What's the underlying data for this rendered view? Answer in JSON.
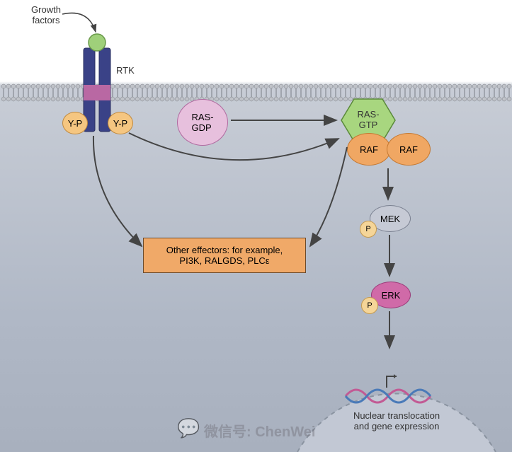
{
  "labels": {
    "growth_factors": "Growth\nfactors",
    "rtk": "RTK",
    "yp_left": "Y-P",
    "yp_right": "Y-P",
    "ras_gdp": "RAS-\nGDP",
    "ras_gtp": "RAS-\nGTP",
    "raf1": "RAF",
    "raf2": "RAF",
    "mek": "MEK",
    "p1": "P",
    "erk": "ERK",
    "p2": "P",
    "effectors": "Other effectors: for example,\nPI3K, RALGDS, PLCε",
    "nucleus": "Nuclear translocation\nand gene expression",
    "watermark_wechat": "微信号:",
    "watermark_name": "ChenWei"
  },
  "colors": {
    "bg_top": "#ffffff",
    "bg_cell": "#b0b8c6",
    "membrane_dark": "#555b63",
    "membrane_light": "#c8c8c8",
    "rtk_body": "#3a4287",
    "rtk_mid": "#b968a3",
    "growth_factor": "#9fd07a",
    "yp_fill": "#f5c681",
    "yp_stroke": "#c08a40",
    "ras_gdp_fill": "#e7c0dd",
    "ras_gdp_stroke": "#b06aa0",
    "ras_gtp_fill": "#a8d67f",
    "ras_gtp_stroke": "#5a8a3a",
    "raf_fill": "#f0a763",
    "raf_stroke": "#c47830",
    "mek_fill": "#c6cad5",
    "mek_stroke": "#7a8090",
    "erk_fill": "#d06aa8",
    "erk_stroke": "#9a3a78",
    "p_fill": "#f5d598",
    "p_stroke": "#c49a50",
    "effectors_fill": "#f0a968",
    "effectors_stroke": "#8a5a2a",
    "nucleus_fill": "#c2c8d4",
    "nucleus_stroke": "#8a93a0",
    "arrow": "#444",
    "helix1": "#c25a94",
    "helix2": "#4a7ab8"
  }
}
